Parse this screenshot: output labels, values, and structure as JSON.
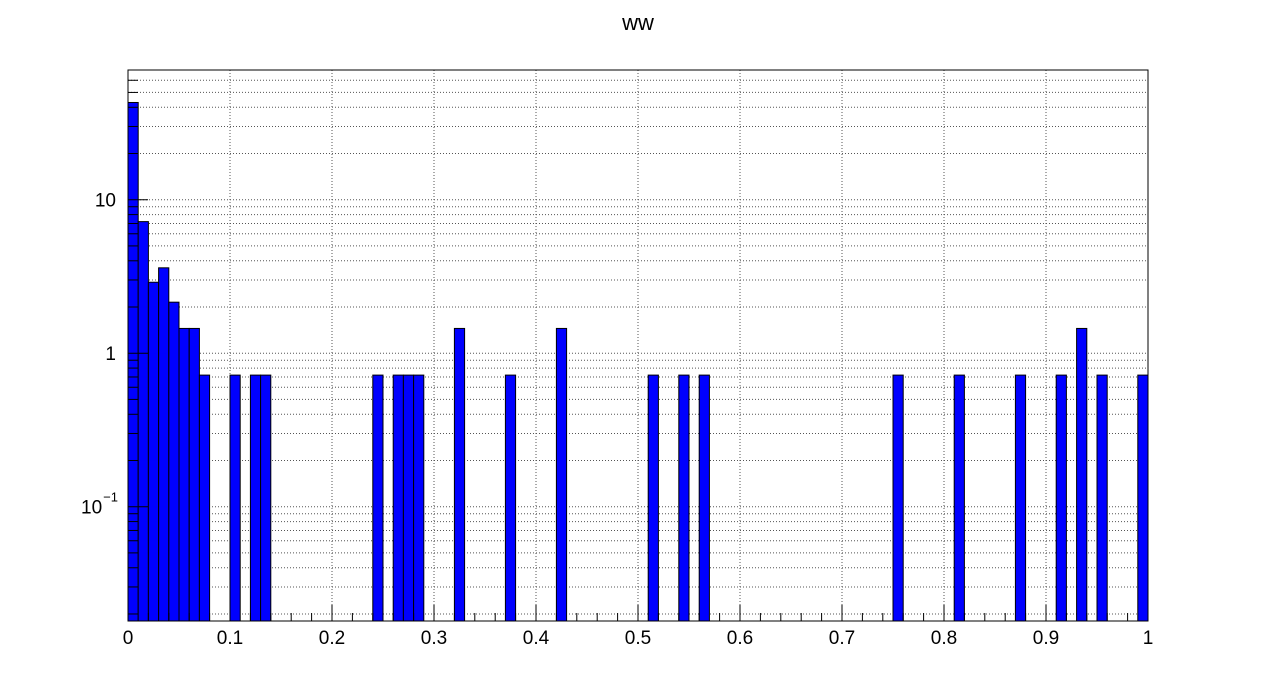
{
  "chart_data": {
    "type": "bar",
    "title": "ww",
    "xlabel": "",
    "ylabel": "",
    "y_scale": "log",
    "grid": true,
    "legend": "none",
    "bar_color": "#0000ff",
    "bar_edge_color": "#000000",
    "xlim": [
      0,
      1
    ],
    "ylim": [
      0.018,
      70
    ],
    "bin_width": 0.01,
    "x_tick_labels": [
      "0",
      "0.1",
      "0.2",
      "0.3",
      "0.4",
      "0.5",
      "0.6",
      "0.7",
      "0.8",
      "0.9",
      "1"
    ],
    "y_tick_labels": [
      {
        "base": "10",
        "exp": "−1",
        "value": 0.1
      },
      {
        "base": "1",
        "exp": "",
        "value": 1
      },
      {
        "base": "10",
        "exp": "",
        "value": 10
      }
    ],
    "series": [
      {
        "bin_starts": [
          0.0,
          0.01,
          0.02,
          0.03,
          0.04,
          0.05,
          0.06,
          0.07,
          0.1,
          0.12,
          0.13,
          0.24,
          0.26,
          0.27,
          0.28,
          0.32,
          0.37,
          0.42,
          0.51,
          0.54,
          0.56,
          0.75,
          0.81,
          0.87,
          0.91,
          0.93,
          0.95,
          0.99
        ],
        "values": [
          43,
          7.2,
          2.9,
          3.6,
          2.15,
          1.45,
          1.45,
          0.72,
          0.72,
          0.72,
          0.72,
          0.72,
          0.72,
          0.72,
          0.72,
          1.45,
          0.72,
          1.45,
          0.72,
          0.72,
          0.72,
          0.72,
          0.72,
          0.72,
          0.72,
          1.45,
          0.72,
          0.72
        ]
      }
    ]
  }
}
